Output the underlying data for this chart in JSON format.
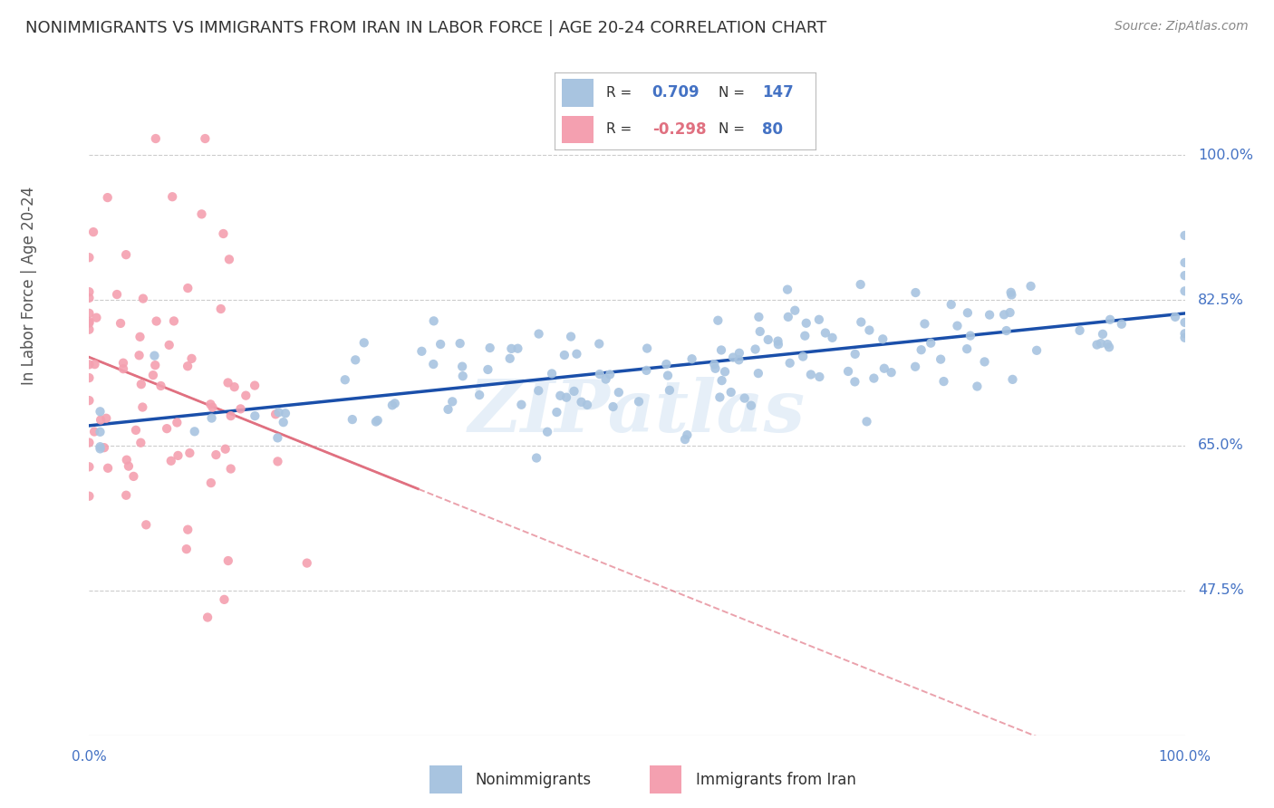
{
  "title": "NONIMMIGRANTS VS IMMIGRANTS FROM IRAN IN LABOR FORCE | AGE 20-24 CORRELATION CHART",
  "source": "Source: ZipAtlas.com",
  "ylabel": "In Labor Force | Age 20-24",
  "ytick_positions": [
    0.475,
    0.65,
    0.825,
    1.0
  ],
  "ytick_labels": [
    "47.5%",
    "65.0%",
    "82.5%",
    "100.0%"
  ],
  "xrange": [
    0.0,
    1.0
  ],
  "yrange": [
    0.3,
    1.08
  ],
  "r_nonimmigrant": 0.709,
  "n_nonimmigrant": 147,
  "r_immigrant": -0.298,
  "n_immigrant": 80,
  "nonimmigrant_color": "#a8c4e0",
  "immigrant_color": "#f4a0b0",
  "trendline_nonimmigrant_color": "#1a4faa",
  "trendline_immigrant_color": "#e07080",
  "legend_label_1": "Nonimmigrants",
  "legend_label_2": "Immigrants from Iran",
  "watermark": "ZIPatlas",
  "background_color": "#ffffff",
  "axis_label_color": "#4472c4",
  "title_color": "#333333"
}
